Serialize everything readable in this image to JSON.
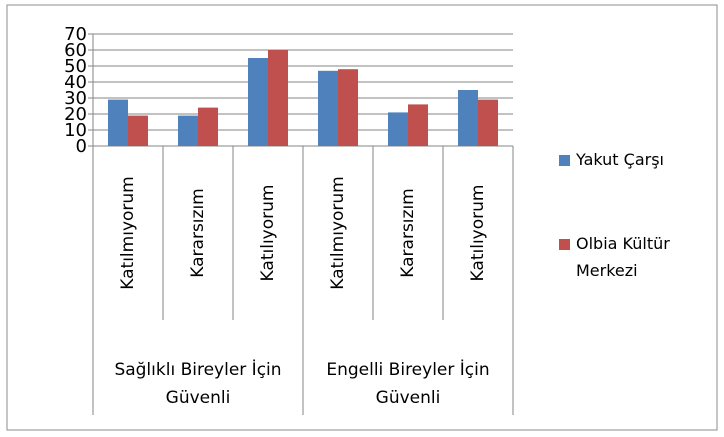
{
  "chart_data": {
    "type": "bar",
    "categories": [
      "Katılmıyorum",
      "Kararsızım",
      "Katılıyorum",
      "Katılmıyorum",
      "Kararsızım",
      "Katılıyorum"
    ],
    "category_groups": [
      "Sağlıklı Bireyler İçin Güvenli",
      "Engelli Bireyler İçin Güvenli"
    ],
    "series": [
      {
        "name": "Yakut Çarşı",
        "color": "#4f81bd",
        "values": [
          29,
          19,
          55,
          47,
          21,
          35
        ]
      },
      {
        "name": "Olbia Kültür Merkezi",
        "color": "#c0504d",
        "values": [
          19,
          24,
          60,
          48,
          26,
          29
        ]
      }
    ],
    "ylim": [
      0,
      70
    ],
    "yticks": [
      0,
      10,
      20,
      30,
      40,
      50,
      60,
      70
    ],
    "grid": true,
    "legend": "right"
  }
}
